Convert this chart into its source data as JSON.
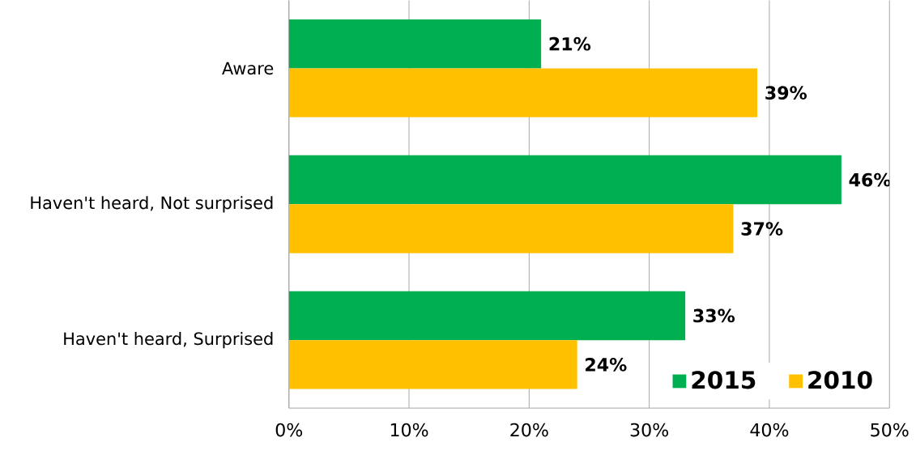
{
  "chart_data": {
    "type": "bar",
    "orientation": "horizontal",
    "categories": [
      "Aware",
      "Haven't heard, Not surprised",
      "Haven't heard, Surprised"
    ],
    "series": [
      {
        "name": "2015",
        "color": "#00b050",
        "values": [
          21,
          46,
          33
        ],
        "value_labels": [
          "21%",
          "46%",
          "33%"
        ]
      },
      {
        "name": "2010",
        "color": "#ffc000",
        "values": [
          39,
          37,
          24
        ],
        "value_labels": [
          "39%",
          "37%",
          "24%"
        ]
      }
    ],
    "xlim": [
      0,
      50
    ],
    "xticks": [
      {
        "value": 0,
        "label": "0%"
      },
      {
        "value": 10,
        "label": "10%"
      },
      {
        "value": 20,
        "label": "20%"
      },
      {
        "value": 30,
        "label": "30%"
      },
      {
        "value": 40,
        "label": "40%"
      },
      {
        "value": 50,
        "label": "50%"
      }
    ],
    "grid": "x",
    "legend": "bottom right"
  }
}
